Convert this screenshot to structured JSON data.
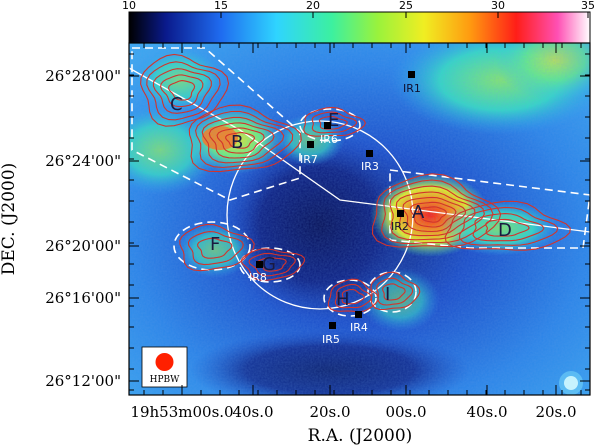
{
  "colorbar": {
    "ticks": [
      "10",
      "15",
      "20",
      "25",
      "30",
      "35"
    ]
  },
  "axes": {
    "xlabel": "R.A. (J2000)",
    "ylabel": "DEC. (J2000)",
    "xticks": [
      "19h53m00s.0",
      "40s.0",
      "20s.0",
      "00s.0",
      "40s.0",
      "20s.0"
    ],
    "yticks": [
      "26°28'00\"",
      "26°24'00\"",
      "26°20'00\"",
      "26°16'00\"",
      "26°12'00\""
    ]
  },
  "regions": [
    {
      "label": "A"
    },
    {
      "label": "B"
    },
    {
      "label": "C"
    },
    {
      "label": "D"
    },
    {
      "label": "E"
    },
    {
      "label": "F"
    },
    {
      "label": "G"
    },
    {
      "label": "H"
    },
    {
      "label": "I"
    }
  ],
  "sources": [
    {
      "label": "IR1"
    },
    {
      "label": "IR2"
    },
    {
      "label": "IR3"
    },
    {
      "label": "IR4"
    },
    {
      "label": "IR5"
    },
    {
      "label": "IR6"
    },
    {
      "label": "IR7"
    },
    {
      "label": "IR8"
    }
  ],
  "beam": {
    "label": "HPBW"
  },
  "colors": {
    "contour": "#d2342c",
    "dashed": "#ffffff",
    "ring": "#ffffff",
    "beam": "#ff2000"
  }
}
